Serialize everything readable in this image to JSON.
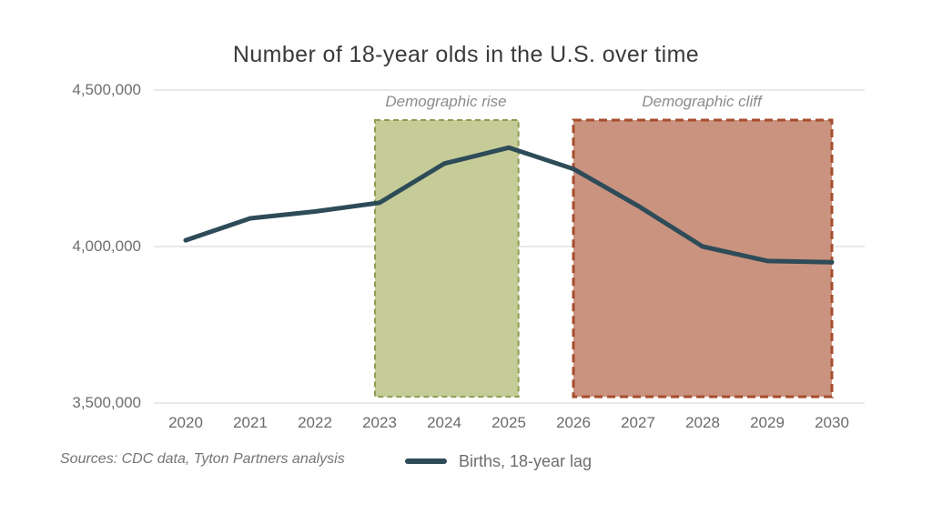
{
  "title": "Number of 18-year olds in the U.S. over time",
  "source_note": "Sources: CDC data, Tyton Partners analysis",
  "legend": {
    "label": "Births, 18-year lag"
  },
  "annotations": {
    "rise": "Demographic rise",
    "cliff": "Demographic cliff"
  },
  "colors": {
    "line": "#2e4b58",
    "grid": "#e2e2e2",
    "title_text": "#3b3b3b",
    "axis_text": "#6e6e6e",
    "annotation_text": "#8c8c8c",
    "rise_fill": "#c6cc98",
    "rise_border": "#8e9c52",
    "cliff_fill": "#c9937f",
    "cliff_border": "#a64d2d"
  },
  "chart_data": {
    "type": "line",
    "title": "Number of 18-year olds in the U.S. over time",
    "xlabel": "",
    "ylabel": "",
    "x": [
      2020,
      2021,
      2022,
      2023,
      2024,
      2025,
      2026,
      2027,
      2028,
      2029,
      2030
    ],
    "categories": [
      "2020",
      "2021",
      "2022",
      "2023",
      "2024",
      "2025",
      "2026",
      "2027",
      "2028",
      "2029",
      "2030"
    ],
    "series": [
      {
        "name": "Births, 18-year lag",
        "values": [
          4020000,
          4090000,
          4112000,
          4140000,
          4265000,
          4316000,
          4248000,
          4130000,
          4000000,
          3954000,
          3950000
        ]
      }
    ],
    "ylim": [
      3500000,
      4500000
    ],
    "yticks": [
      4500000,
      4000000,
      3500000
    ],
    "ytick_labels": [
      "4,500,000",
      "4,000,000",
      "3,500,000"
    ],
    "grid": true,
    "legend_position": "bottom",
    "regions": [
      {
        "label": "Demographic rise",
        "x_start": 2022.93,
        "x_end": 2025.15,
        "y_top": 4404000,
        "y_bottom": 3520000,
        "fill": "#c6cc98",
        "border": "#8e9c52"
      },
      {
        "label": "Demographic cliff",
        "x_start": 2026,
        "x_end": 2030,
        "y_top": 4404000,
        "y_bottom": 3520000,
        "fill": "#c9937f",
        "border": "#a64d2d"
      }
    ]
  }
}
